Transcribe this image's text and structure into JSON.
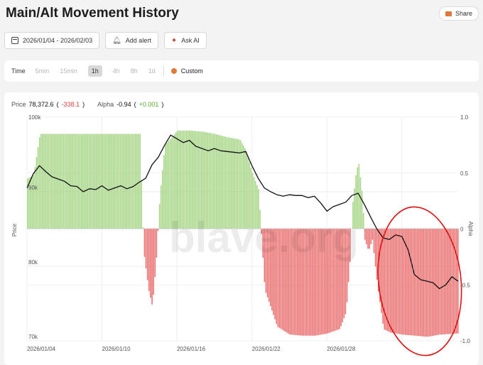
{
  "header": {
    "title": "Main/Alt Movement History",
    "share_label": "Share"
  },
  "toolbar": {
    "date_range": "2026/01/04 - 2026/02/03",
    "add_alert_label": "Add alert",
    "ask_ai_label": "Ask AI"
  },
  "timeframe": {
    "label": "Time",
    "options": [
      "5min",
      "15min",
      "1h",
      "4h",
      "8h",
      "1d"
    ],
    "selected": "1h",
    "custom_label": "Custom"
  },
  "legend": {
    "price_label": "Price",
    "price_value": "78,372.6",
    "price_change": "-338.1",
    "alpha_label": "Alpha",
    "alpha_value": "-0.94",
    "alpha_change": "+0.001"
  },
  "watermark": "blave.org",
  "colors": {
    "positive_fill": "#9ed17b",
    "negative_fill": "#e86060",
    "price_line": "#111111",
    "annotation": "#e01010"
  },
  "chart_data": {
    "type": "area",
    "xlabel": "",
    "ylabel_left": "Price",
    "ylabel_right": "Alpha",
    "x_ticks": [
      "2026/01/04",
      "2026/01/10",
      "2026/01/16",
      "2026/01/22",
      "2026/01/28"
    ],
    "x_range_days": [
      0,
      30
    ],
    "left_ticks": [
      "100k",
      "90k",
      "80k",
      "70k"
    ],
    "left_range": [
      70000,
      100000
    ],
    "right_ticks": [
      "1.0",
      "0.5",
      "0",
      "-0.5",
      "-1.0"
    ],
    "right_range": [
      -1.0,
      1.0
    ],
    "grid": true,
    "series": [
      {
        "name": "Price",
        "style": "line",
        "points": [
          [
            0.0,
            90500
          ],
          [
            0.5,
            92400
          ],
          [
            1.0,
            93500
          ],
          [
            1.5,
            92700
          ],
          [
            2.0,
            92000
          ],
          [
            2.5,
            91700
          ],
          [
            3.0,
            91400
          ],
          [
            3.5,
            90800
          ],
          [
            4.0,
            90700
          ],
          [
            4.5,
            90000
          ],
          [
            5.0,
            90400
          ],
          [
            5.5,
            90300
          ],
          [
            6.0,
            90800
          ],
          [
            6.5,
            90200
          ],
          [
            7.0,
            90500
          ],
          [
            7.5,
            90800
          ],
          [
            8.0,
            90400
          ],
          [
            8.5,
            90700
          ],
          [
            9.0,
            91300
          ],
          [
            9.5,
            91800
          ],
          [
            10.0,
            93600
          ],
          [
            10.5,
            94600
          ],
          [
            11.0,
            96200
          ],
          [
            11.5,
            97600
          ],
          [
            12.0,
            97100
          ],
          [
            12.5,
            96600
          ],
          [
            13.0,
            96900
          ],
          [
            13.5,
            96100
          ],
          [
            14.0,
            95800
          ],
          [
            14.5,
            95500
          ],
          [
            15.0,
            95800
          ],
          [
            15.5,
            95500
          ],
          [
            16.0,
            95400
          ],
          [
            16.5,
            95300
          ],
          [
            17.0,
            95200
          ],
          [
            17.5,
            95400
          ],
          [
            18.0,
            93500
          ],
          [
            18.5,
            91800
          ],
          [
            19.0,
            90500
          ],
          [
            19.5,
            90000
          ],
          [
            20.0,
            89600
          ],
          [
            20.5,
            89400
          ],
          [
            21.0,
            89600
          ],
          [
            21.5,
            89500
          ],
          [
            22.0,
            89500
          ],
          [
            22.5,
            89200
          ],
          [
            23.0,
            89400
          ],
          [
            23.5,
            88500
          ],
          [
            24.0,
            87400
          ],
          [
            24.5,
            88000
          ],
          [
            25.0,
            88300
          ],
          [
            25.5,
            88600
          ],
          [
            26.0,
            89500
          ],
          [
            26.5,
            89800
          ],
          [
            27.0,
            88300
          ],
          [
            27.5,
            86600
          ],
          [
            28.0,
            85000
          ],
          [
            28.5,
            83800
          ],
          [
            29.0,
            83600
          ],
          [
            29.5,
            84200
          ],
          [
            30.0,
            84000
          ],
          [
            30.5,
            82200
          ],
          [
            31.0,
            78900
          ],
          [
            31.5,
            78200
          ],
          [
            32.0,
            78000
          ],
          [
            32.5,
            77800
          ],
          [
            33.0,
            77000
          ],
          [
            33.5,
            77500
          ],
          [
            34.0,
            78600
          ],
          [
            34.5,
            78000
          ]
        ]
      },
      {
        "name": "Alpha",
        "style": "area",
        "points": [
          [
            0.0,
            0.45
          ],
          [
            0.5,
            0.48
          ],
          [
            1.0,
            0.85
          ],
          [
            3.0,
            0.85
          ],
          [
            5.0,
            0.85
          ],
          [
            7.0,
            0.85
          ],
          [
            9.0,
            0.85
          ],
          [
            9.3,
            -0.2
          ],
          [
            9.7,
            -0.55
          ],
          [
            10.0,
            -0.7
          ],
          [
            10.3,
            -0.3
          ],
          [
            10.6,
            0.3
          ],
          [
            11.0,
            0.75
          ],
          [
            12.0,
            0.88
          ],
          [
            13.0,
            0.88
          ],
          [
            14.0,
            0.87
          ],
          [
            15.0,
            0.85
          ],
          [
            16.0,
            0.82
          ],
          [
            17.0,
            0.8
          ],
          [
            17.5,
            0.7
          ],
          [
            18.0,
            0.5
          ],
          [
            18.5,
            0.35
          ],
          [
            19.0,
            -0.55
          ],
          [
            20.0,
            -0.88
          ],
          [
            21.0,
            -0.95
          ],
          [
            22.0,
            -0.96
          ],
          [
            23.0,
            -0.96
          ],
          [
            24.0,
            -0.94
          ],
          [
            25.0,
            -0.9
          ],
          [
            25.5,
            -0.75
          ],
          [
            25.8,
            -0.3
          ],
          [
            26.0,
            0.2
          ],
          [
            26.3,
            0.5
          ],
          [
            26.5,
            0.6
          ],
          [
            26.8,
            0.3
          ],
          [
            27.0,
            -0.1
          ],
          [
            27.3,
            -0.2
          ],
          [
            27.6,
            -0.1
          ],
          [
            28.0,
            -0.5
          ],
          [
            28.5,
            -0.9
          ],
          [
            29.0,
            -0.93
          ],
          [
            30.0,
            -0.95
          ],
          [
            31.0,
            -0.96
          ],
          [
            32.0,
            -0.97
          ],
          [
            33.0,
            -0.95
          ],
          [
            34.5,
            -0.94
          ]
        ]
      }
    ],
    "annotations": [
      {
        "type": "ellipse",
        "description": "red circle",
        "around": "late-January price drop"
      }
    ]
  }
}
